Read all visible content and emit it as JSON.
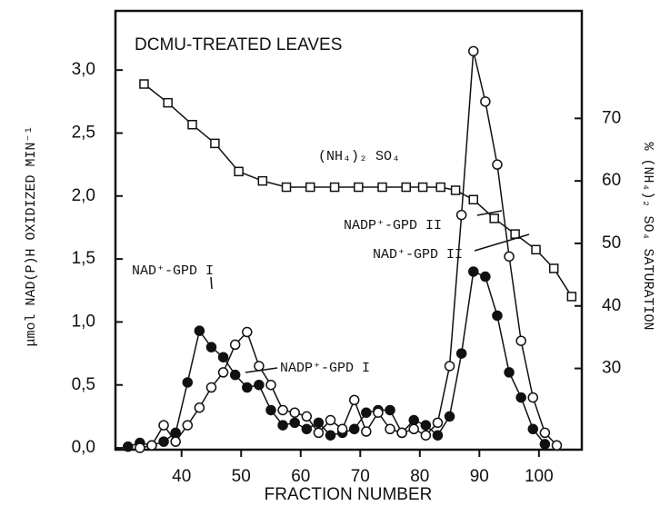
{
  "chart_data": {
    "type": "line",
    "title": "DCMU-TREATED LEAVES",
    "x_label": "FRACTION NUMBER",
    "y_label": "μmol NAD(P)H OXIDIZED MIN⁻¹",
    "y2_label": "% (NH₄)₂ SO₄ SATURATION",
    "xlim": [
      28.9,
      107.2
    ],
    "xticks": [
      40,
      50,
      60,
      70,
      80,
      90,
      100
    ],
    "ylim": [
      -0.014,
      3.47
    ],
    "yticks": [
      {
        "value": 0,
        "label": "0,0"
      },
      {
        "value": 0.5,
        "label": "0,5"
      },
      {
        "value": 1,
        "label": "1,0"
      },
      {
        "value": 1.5,
        "label": "1,5"
      },
      {
        "value": 2,
        "label": "2,0"
      },
      {
        "value": 2.5,
        "label": "2,5"
      },
      {
        "value": 3,
        "label": "3,0"
      }
    ],
    "y2lim": [
      17,
      87.2
    ],
    "y2ticks": [
      30,
      40,
      50,
      60,
      70
    ],
    "series": [
      {
        "marker": "filled",
        "color": "#111111",
        "x": [
          31,
          33,
          35,
          37,
          39,
          41,
          43,
          45,
          47,
          49,
          51,
          53,
          55,
          57,
          59,
          61,
          63,
          65,
          67,
          69,
          71,
          73,
          75,
          77,
          79,
          81,
          83,
          85,
          87,
          89,
          91,
          93,
          95,
          97,
          99,
          101
        ],
        "values": [
          0.01,
          0.04,
          0.02,
          0.05,
          0.12,
          0.52,
          0.93,
          0.8,
          0.72,
          0.58,
          0.48,
          0.5,
          0.3,
          0.18,
          0.2,
          0.15,
          0.2,
          0.1,
          0.12,
          0.15,
          0.28,
          0.3,
          0.3,
          0.12,
          0.22,
          0.18,
          0.1,
          0.25,
          0.75,
          1.4,
          1.36,
          1.05,
          0.6,
          0.4,
          0.15,
          0.03
        ]
      },
      {
        "marker": "open",
        "color": "#111111",
        "x": [
          33,
          35,
          37,
          39,
          41,
          43,
          45,
          47,
          49,
          51,
          53,
          55,
          57,
          59,
          61,
          63,
          65,
          67,
          69,
          71,
          73,
          75,
          77,
          79,
          81,
          83,
          85,
          87,
          89,
          91,
          93,
          95,
          97,
          99,
          101,
          103
        ],
        "values": [
          0,
          0.02,
          0.18,
          0.05,
          0.18,
          0.32,
          0.48,
          0.6,
          0.82,
          0.92,
          0.65,
          0.5,
          0.3,
          0.28,
          0.25,
          0.12,
          0.22,
          0.15,
          0.38,
          0.13,
          0.28,
          0.15,
          0.12,
          0.15,
          0.1,
          0.2,
          0.65,
          1.85,
          3.15,
          2.75,
          2.25,
          1.52,
          0.85,
          0.4,
          0.12,
          0.02
        ]
      },
      {
        "marker": "square",
        "color": "#111111",
        "axis": "y2",
        "x": [
          33.7,
          37.7,
          41.8,
          45.6,
          49.6,
          53.6,
          57.6,
          61.6,
          65.7,
          69.7,
          73.7,
          77.7,
          80.5,
          83.5,
          86,
          89,
          92.5,
          96,
          99.5,
          102.5,
          105.5
        ],
        "values": [
          75.5,
          72.5,
          69,
          66,
          61.5,
          60,
          59,
          59,
          59,
          59,
          59,
          59,
          59,
          59,
          58.5,
          57,
          54,
          51.5,
          49,
          46,
          41.5
        ]
      }
    ],
    "annotations": [
      "(NH₄)₂ SO₄",
      "NADP⁺-GPD II",
      "NAD⁺-GPD II",
      "NAD⁺-GPD I",
      "NADP⁺-GPD I"
    ]
  }
}
